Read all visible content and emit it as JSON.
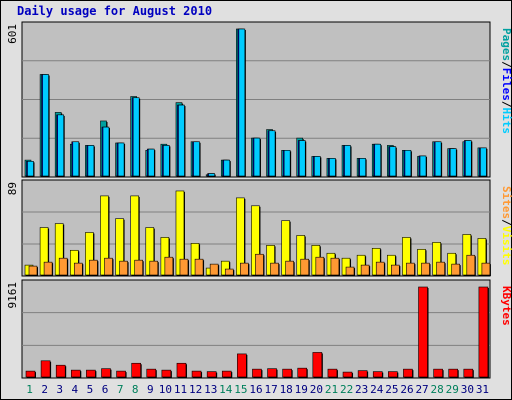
{
  "title": "Daily usage for August 2010",
  "colors": {
    "hits": "#00ccff",
    "files": "#0000ff",
    "pages": "#00a0a0",
    "visits": "#ffff00",
    "sites": "#ff9933",
    "kbytes": "#ff0000",
    "panel_bg": "#c0c0c0",
    "weekend_label": "#00805c",
    "weekday_label": "#000080"
  },
  "legend": {
    "top": [
      "Pages",
      "/",
      "Files",
      "/",
      "Hits"
    ],
    "middle": [
      "Sites",
      "/",
      "Visits"
    ],
    "bottom": [
      "KBytes"
    ]
  },
  "chart_data": [
    {
      "type": "bar",
      "title": "Daily usage for August 2010",
      "panel": "hits-files-pages",
      "ymax_label": "601",
      "ylim": [
        0,
        601
      ],
      "categories": [
        "1",
        "2",
        "3",
        "4",
        "5",
        "6",
        "7",
        "8",
        "9",
        "10",
        "11",
        "12",
        "13",
        "14",
        "15",
        "16",
        "17",
        "18",
        "19",
        "20",
        "21",
        "22",
        "23",
        "24",
        "25",
        "26",
        "27",
        "28",
        "29",
        "30",
        "31"
      ],
      "series": [
        {
          "name": "Hits",
          "values": [
            60,
            415,
            250,
            140,
            125,
            200,
            135,
            320,
            110,
            125,
            290,
            140,
            10,
            65,
            601,
            155,
            185,
            105,
            145,
            80,
            72,
            125,
            72,
            130,
            120,
            105,
            82,
            140,
            112,
            145,
            115
          ]
        },
        {
          "name": "Files",
          "values": [
            60,
            415,
            250,
            140,
            125,
            200,
            135,
            320,
            110,
            125,
            290,
            140,
            10,
            65,
            601,
            155,
            185,
            105,
            145,
            80,
            72,
            125,
            72,
            130,
            120,
            105,
            82,
            140,
            112,
            145,
            115
          ]
        },
        {
          "name": "Pages",
          "values": [
            65,
            415,
            260,
            130,
            125,
            225,
            135,
            325,
            105,
            130,
            300,
            140,
            5,
            65,
            601,
            155,
            190,
            105,
            155,
            80,
            72,
            125,
            72,
            130,
            125,
            105,
            80,
            140,
            112,
            140,
            115
          ]
        }
      ]
    },
    {
      "type": "bar",
      "panel": "visits-sites",
      "ymax_label": "89",
      "ylim": [
        0,
        89
      ],
      "categories": [
        "1",
        "2",
        "3",
        "4",
        "5",
        "6",
        "7",
        "8",
        "9",
        "10",
        "11",
        "12",
        "13",
        "14",
        "15",
        "16",
        "17",
        "18",
        "19",
        "20",
        "21",
        "22",
        "23",
        "24",
        "25",
        "26",
        "27",
        "28",
        "29",
        "30",
        "31"
      ],
      "series": [
        {
          "name": "Visits",
          "values": [
            10,
            48,
            52,
            25,
            43,
            80,
            57,
            80,
            48,
            38,
            85,
            32,
            7,
            14,
            78,
            70,
            30,
            55,
            40,
            30,
            22,
            17,
            20,
            27,
            20,
            38,
            26,
            33,
            22,
            41,
            37
          ]
        },
        {
          "name": "Sites",
          "values": [
            9,
            13,
            17,
            12,
            15,
            17,
            14,
            15,
            14,
            18,
            16,
            16,
            11,
            6,
            12,
            21,
            12,
            14,
            16,
            18,
            17,
            8,
            10,
            13,
            10,
            12,
            12,
            13,
            11,
            20,
            12
          ]
        }
      ]
    },
    {
      "type": "bar",
      "panel": "kbytes",
      "ymax_label": "9161",
      "ylim": [
        0,
        9161
      ],
      "categories": [
        "1",
        "2",
        "3",
        "4",
        "5",
        "6",
        "7",
        "8",
        "9",
        "10",
        "11",
        "12",
        "13",
        "14",
        "15",
        "16",
        "17",
        "18",
        "19",
        "20",
        "21",
        "22",
        "23",
        "24",
        "25",
        "26",
        "27",
        "28",
        "29",
        "30",
        "31"
      ],
      "series": [
        {
          "name": "KBytes",
          "values": [
            600,
            1650,
            1200,
            700,
            700,
            850,
            600,
            1400,
            800,
            700,
            1400,
            600,
            550,
            600,
            2350,
            800,
            850,
            800,
            900,
            2500,
            800,
            500,
            650,
            550,
            550,
            800,
            9161,
            800,
            800,
            800,
            9161
          ]
        }
      ]
    }
  ]
}
